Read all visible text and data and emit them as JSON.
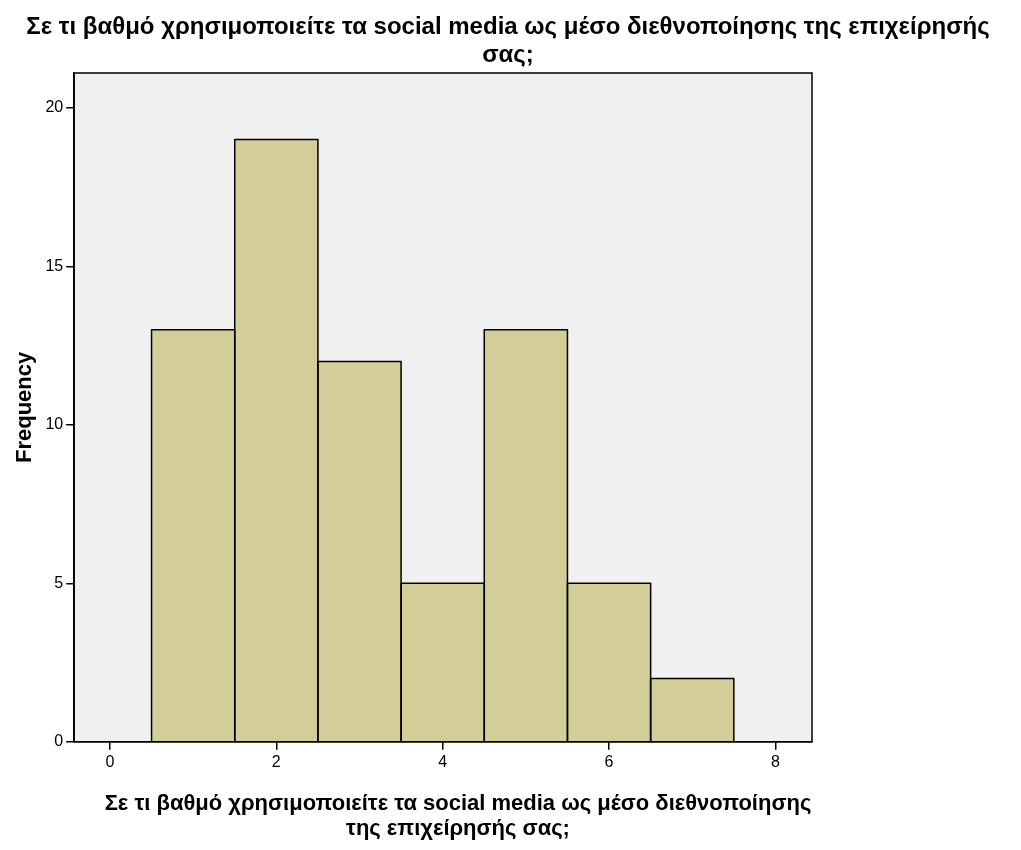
{
  "chart_data": {
    "type": "histogram",
    "title": "Σε τι βαθμό χρησιμοποιείτε τα social media ως μέσο διεθνοποίησης της επιχείρησής σας;",
    "xlabel": "Σε τι βαθμό χρησιμοποιείτε τα social media ως μέσο διεθνοποίησης της επιχείρησής σας;",
    "ylabel": "Frequency",
    "bins": [
      0.5,
      1.5,
      2.5,
      3.5,
      4.5,
      5.5,
      6.5,
      7.5
    ],
    "values": [
      13,
      19,
      12,
      5,
      13,
      5,
      2
    ],
    "color": "#d3ce99",
    "xlim": [
      -0.43,
      8.44
    ],
    "xticks": [
      0,
      2,
      4,
      6,
      8
    ],
    "ylim": [
      0,
      21.1
    ],
    "yticks": [
      0,
      5,
      10,
      15,
      20
    ],
    "grid": false,
    "legend": false
  }
}
